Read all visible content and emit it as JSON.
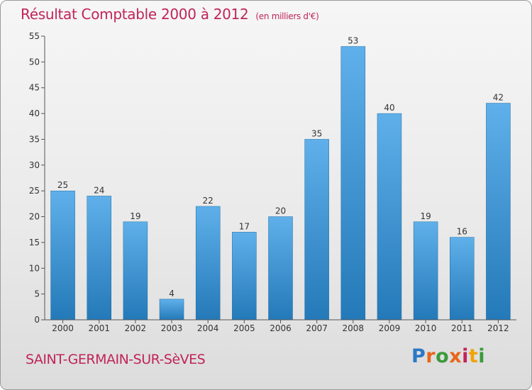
{
  "title": "Résultat Comptable 2000 à 2012",
  "unit": "(en milliers d'€)",
  "town": "SAINT-GERMAIN-SUR-SèVES",
  "logo": {
    "text": "Proxiti",
    "letter_colors": [
      "#2b78c6",
      "#e8661a",
      "#3a9a3a",
      "#e8661a",
      "#c0245a",
      "#f0a30a",
      "#3a9a3a"
    ]
  },
  "colors": {
    "bar_light": "#5fb0ea",
    "bar_dark": "#2479b8",
    "accent": "#c0245a",
    "axis": "#555555"
  },
  "chart_data": {
    "type": "bar",
    "categories": [
      "2000",
      "2001",
      "2002",
      "2003",
      "2004",
      "2005",
      "2006",
      "2007",
      "2008",
      "2009",
      "2010",
      "2011",
      "2012"
    ],
    "values": [
      25,
      24,
      19,
      4,
      22,
      17,
      20,
      35,
      53,
      40,
      19,
      16,
      42
    ],
    "ylim": [
      0,
      55
    ],
    "yticks": [
      0,
      5,
      10,
      15,
      20,
      25,
      30,
      35,
      40,
      45,
      50,
      55
    ],
    "grid": false,
    "data_labels": true
  }
}
